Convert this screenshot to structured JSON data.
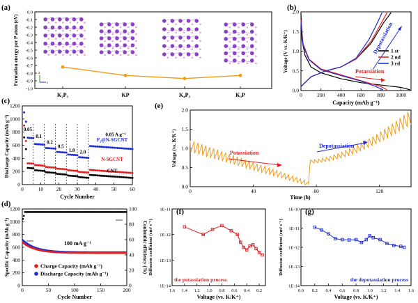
{
  "chart_data": [
    {
      "id": "a",
      "type": "line",
      "panel_label": "(a)",
      "ylabel": "Formation energy per P atom (eV)",
      "ylim": [
        -1.0,
        0.0
      ],
      "yticks": [
        "0.0",
        "-0.1",
        "-0.2",
        "-0.3",
        "-0.4",
        "-0.5",
        "-0.6",
        "-0.7",
        "-0.8",
        "-0.9",
        "-1.0"
      ],
      "categories": [
        "K₂P₃",
        "KP",
        "K₄P₃",
        "K₃P"
      ],
      "values": [
        -0.72,
        -0.83,
        -0.87,
        -0.83
      ],
      "axis_labels": [
        "a",
        "b",
        "c"
      ],
      "color": "#f29a1a"
    },
    {
      "id": "b",
      "type": "line",
      "panel_label": "(b)",
      "xlabel": "Capacity (mAh g⁻¹)",
      "ylabel": "Voltage (V vs. K/K⁺)",
      "xlim": [
        0,
        1100
      ],
      "ylim": [
        0.0,
        2.0
      ],
      "xticks": [
        0,
        200,
        400,
        600,
        800,
        1000
      ],
      "yticks": [
        "0.0",
        "0.5",
        "1.0",
        "1.5",
        "2.0"
      ],
      "annotations": [
        "Depotassiation",
        "Potassiation"
      ],
      "series": [
        {
          "name": "1 st",
          "color": "#000000",
          "discharge": [
            [
              0,
              1.95
            ],
            [
              10,
              1.3
            ],
            [
              40,
              0.9
            ],
            [
              100,
              0.6
            ],
            [
              200,
              0.45
            ],
            [
              400,
              0.3
            ],
            [
              600,
              0.2
            ],
            [
              800,
              0.14
            ],
            [
              1000,
              0.08
            ],
            [
              1090,
              0.02
            ]
          ],
          "charge": [
            [
              0,
              0.1
            ],
            [
              100,
              0.35
            ],
            [
              250,
              0.5
            ],
            [
              400,
              0.6
            ],
            [
              550,
              0.8
            ],
            [
              700,
              1.2
            ],
            [
              820,
              1.7
            ],
            [
              900,
              1.98
            ]
          ]
        },
        {
          "name": "2 nd",
          "color": "#e02020",
          "discharge": [
            [
              0,
              1.8
            ],
            [
              20,
              1.2
            ],
            [
              80,
              0.8
            ],
            [
              200,
              0.55
            ],
            [
              400,
              0.4
            ],
            [
              600,
              0.25
            ],
            [
              800,
              0.1
            ],
            [
              860,
              0.02
            ]
          ],
          "charge": [
            [
              0,
              0.1
            ],
            [
              100,
              0.35
            ],
            [
              250,
              0.5
            ],
            [
              400,
              0.6
            ],
            [
              550,
              0.8
            ],
            [
              700,
              1.25
            ],
            [
              800,
              1.7
            ],
            [
              860,
              1.98
            ]
          ]
        },
        {
          "name": "3 rd",
          "color": "#1f2bd6",
          "discharge": [
            [
              0,
              1.75
            ],
            [
              20,
              1.15
            ],
            [
              80,
              0.78
            ],
            [
              200,
              0.53
            ],
            [
              400,
              0.38
            ],
            [
              600,
              0.24
            ],
            [
              750,
              0.1
            ],
            [
              820,
              0.02
            ]
          ],
          "charge": [
            [
              0,
              0.1
            ],
            [
              100,
              0.35
            ],
            [
              250,
              0.5
            ],
            [
              400,
              0.6
            ],
            [
              550,
              0.82
            ],
            [
              680,
              1.3
            ],
            [
              760,
              1.7
            ],
            [
              810,
              1.98
            ]
          ]
        }
      ]
    },
    {
      "id": "c",
      "type": "scatter",
      "panel_label": "(c)",
      "xlabel": "Cycle Number",
      "ylabel": "Discharge Capacity (mAh g⁻¹)",
      "xlim": [
        0,
        60
      ],
      "ylim": [
        0,
        1200
      ],
      "xticks": [
        0,
        10,
        20,
        30,
        40,
        50,
        60
      ],
      "yticks": [
        0,
        200,
        400,
        600,
        800,
        1000,
        1200
      ],
      "rate_labels": [
        "0.05",
        "0.1",
        "0.2",
        "0.5",
        "1.0",
        "2.0",
        "0.05 A g⁻¹"
      ],
      "segments": [
        0,
        6,
        12,
        18,
        24,
        30,
        36,
        60
      ],
      "series": [
        {
          "name": "P₂@N-SGCNT",
          "color": "#1f2bd6",
          "first": 1100,
          "levels": [
            720,
            620,
            560,
            500,
            460,
            420,
            590
          ]
        },
        {
          "name": "N-SGCNT",
          "color": "#e02020",
          "first": 900,
          "levels": [
            330,
            300,
            270,
            245,
            220,
            195,
            225
          ]
        },
        {
          "name": "CNT",
          "color": "#000000",
          "first": 720,
          "levels": [
            260,
            220,
            190,
            165,
            140,
            115,
            150
          ]
        }
      ]
    },
    {
      "id": "d",
      "type": "scatter",
      "panel_label": "(d)",
      "xlabel": "Cycle Number",
      "ylabel": "Specific Capacity (mAh g⁻¹)",
      "ylabel_right": "Coulombic efficiency (%)",
      "xlim": [
        0,
        200
      ],
      "ylim": [
        0,
        1200
      ],
      "ylim_right": [
        0,
        100
      ],
      "xticks": [
        0,
        50,
        100,
        150,
        200
      ],
      "yticks": [
        0,
        200,
        400,
        600,
        800,
        1000,
        1200
      ],
      "yticks_right": [
        0,
        20,
        40,
        60,
        80,
        100
      ],
      "annotation": "100 mA g⁻¹",
      "series": [
        {
          "name": "Charge Capacity (mAh g⁻¹)",
          "color": "#e02020",
          "start": 680,
          "end": 510
        },
        {
          "name": "Discharge Capacity (mAh g⁻¹)",
          "color": "#1f2bd6",
          "start": 720,
          "end": 520
        },
        {
          "name": "Coulombic efficiency",
          "color": "#000000",
          "start": 85,
          "end": 96
        }
      ]
    },
    {
      "id": "e",
      "type": "line",
      "panel_label": "(e)",
      "xlabel": "Time (h)",
      "ylabel": "Voltage (vs. K/K⁺)",
      "xlim": [
        0,
        140
      ],
      "ylim": [
        0.0,
        2.0
      ],
      "xticks": [
        0,
        40,
        80,
        120
      ],
      "yticks": [
        "0.0",
        "0.5",
        "1.0",
        "1.5",
        "2.0"
      ],
      "annotations": [
        "Potassiation",
        "Depotassiation"
      ],
      "color": "#f29a1a",
      "pot_end_time": 75,
      "pot_pulses": 30,
      "depot_pulses": 26,
      "pot_range": [
        [
          1.2,
          0.9
        ],
        [
          0.15,
          0.05
        ]
      ],
      "depot_range": [
        [
          0.7,
          0.6
        ],
        [
          1.95,
          1.6
        ]
      ]
    },
    {
      "id": "f",
      "type": "line",
      "panel_label": "(f)",
      "xlabel": "Voltage (vs. K/K⁺)",
      "ylabel": "Diffusion coefficient (cm² s⁻¹)",
      "log_y": true,
      "xlim": [
        1.6,
        0.1
      ],
      "ylim_exp": [
        -14,
        -11
      ],
      "xticks": [
        "1.6",
        "1.4",
        "1.2",
        "1.0",
        "0.8",
        "0.6",
        "0.4",
        "0.2"
      ],
      "yticks": [
        "1E-11",
        "1E-12",
        "1E-13",
        "1E-14"
      ],
      "note": "the potassiation process",
      "color": "#e02020",
      "points": [
        [
          1.4,
          -11.7
        ],
        [
          1.1,
          -12.0
        ],
        [
          0.95,
          -11.8
        ],
        [
          0.8,
          -11.65
        ],
        [
          0.65,
          -11.85
        ],
        [
          0.55,
          -12.0
        ],
        [
          0.5,
          -12.3
        ],
        [
          0.45,
          -12.5
        ],
        [
          0.4,
          -12.6
        ],
        [
          0.35,
          -12.45
        ],
        [
          0.3,
          -12.4
        ],
        [
          0.25,
          -12.55
        ],
        [
          0.2,
          -12.7
        ],
        [
          0.15,
          -12.8
        ]
      ]
    },
    {
      "id": "g",
      "type": "line",
      "panel_label": "(g)",
      "xlabel": "Voltage (vs. K/K⁺)",
      "ylabel": "Diffusion coefficient (cm² s⁻¹)",
      "log_y": true,
      "xlim": [
        0.0,
        1.6
      ],
      "ylim_exp": [
        -14,
        -10
      ],
      "xticks": [
        "0.0",
        "0.2",
        "0.4",
        "0.6",
        "0.8",
        "1.0",
        "1.2",
        "1.4",
        "1.6"
      ],
      "yticks": [
        "1E-10",
        "1E-11",
        "1E-12",
        "1E-13",
        "1E-14"
      ],
      "note": "the depotassiation process",
      "color": "#1f2bd6",
      "points": [
        [
          0.2,
          -10.95
        ],
        [
          0.3,
          -11.1
        ],
        [
          0.4,
          -11.3
        ],
        [
          0.5,
          -11.55
        ],
        [
          0.6,
          -11.6
        ],
        [
          0.7,
          -11.62
        ],
        [
          0.8,
          -11.6
        ],
        [
          0.88,
          -11.75
        ],
        [
          0.95,
          -11.6
        ],
        [
          1.0,
          -11.4
        ],
        [
          1.05,
          -11.5
        ],
        [
          1.15,
          -11.6
        ],
        [
          1.25,
          -11.8
        ],
        [
          1.35,
          -11.9
        ],
        [
          1.45,
          -11.95
        ],
        [
          1.5,
          -12.0
        ]
      ]
    }
  ]
}
